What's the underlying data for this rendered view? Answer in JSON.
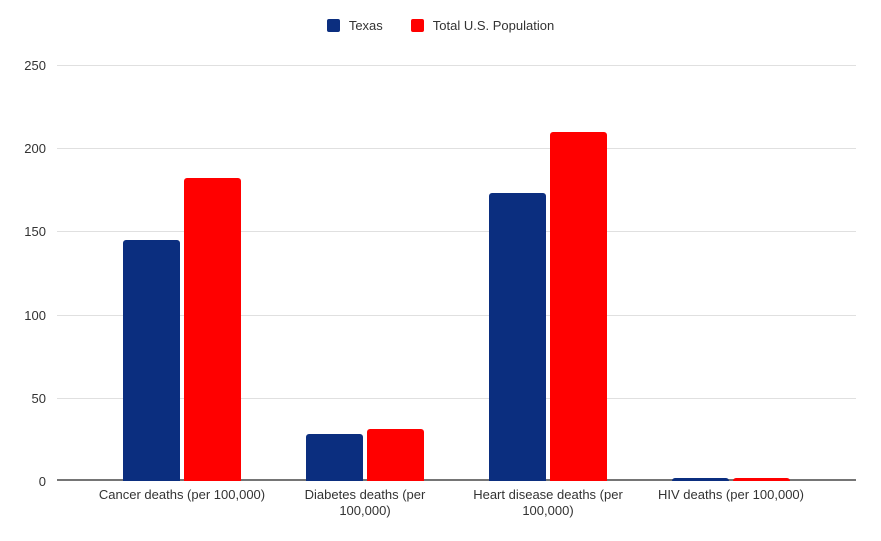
{
  "chart_data": {
    "type": "bar",
    "title": "",
    "xlabel": "",
    "ylabel": "",
    "categories": [
      "Cancer deaths (per 100,000)",
      "Diabetes deaths (per 100,000)",
      "Heart disease deaths (per 100,000)",
      "HIV deaths (per 100,000)"
    ],
    "series": [
      {
        "name": "Texas",
        "color": "#0b2e7f",
        "values": [
          145,
          28,
          173,
          2
        ]
      },
      {
        "name": "Total U.S. Population",
        "color": "#ff0000",
        "values": [
          182,
          31,
          210,
          2
        ]
      }
    ],
    "ylim": [
      0,
      250
    ],
    "yticks": [
      0,
      50,
      100,
      150,
      200,
      250
    ],
    "grid": true,
    "legend_position": "top",
    "colors": {
      "gridline": "#e0e0e0",
      "axis_line": "#757575",
      "axis_text": "#333333",
      "background": "#ffffff"
    }
  }
}
